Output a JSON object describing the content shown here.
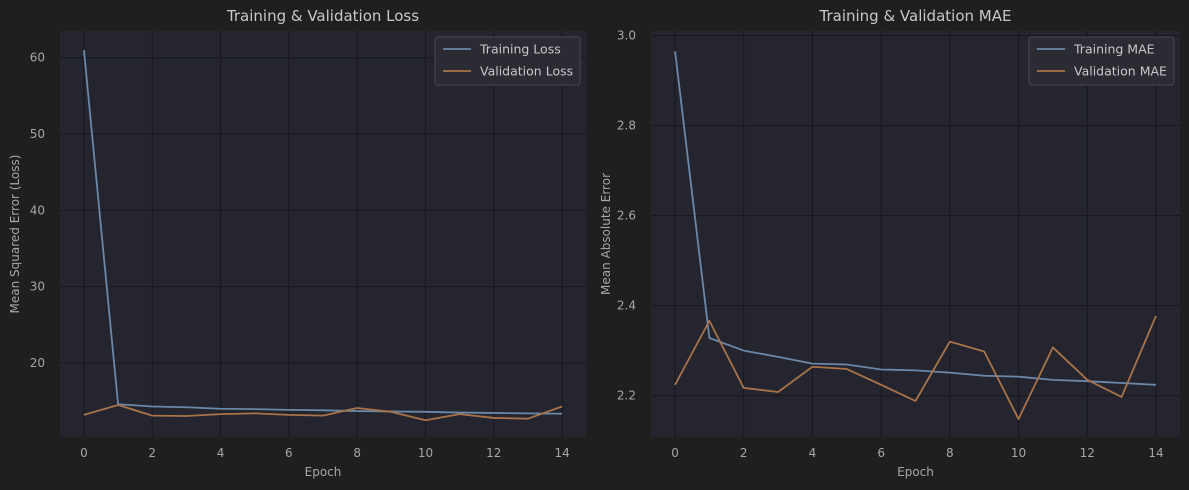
{
  "colors": {
    "figure_bg": "#1f1f1f",
    "axes_bg": "#24252e",
    "grid": "#17181d",
    "training": "#6b88a8",
    "validation": "#a8734a",
    "text": "#c8c8c8",
    "tick_text": "#a6a6a6"
  },
  "chart_data": [
    {
      "type": "line",
      "title": "Training & Validation Loss",
      "xlabel": "Epoch",
      "ylabel": "Mean Squared Error (Loss)",
      "xlim": [
        -0.7,
        14.7
      ],
      "ylim": [
        10.3,
        63.5
      ],
      "xticks": [
        0,
        2,
        4,
        6,
        8,
        10,
        12,
        14
      ],
      "yticks": [
        20,
        30,
        40,
        50,
        60
      ],
      "grid": true,
      "legend_position": "top-right",
      "x": [
        0,
        1,
        2,
        3,
        4,
        5,
        6,
        7,
        8,
        9,
        10,
        11,
        12,
        13,
        14
      ],
      "series": [
        {
          "name": "Training Loss",
          "color_key": "training",
          "values": [
            61.0,
            14.6,
            14.3,
            14.2,
            14.0,
            13.95,
            13.85,
            13.8,
            13.7,
            13.65,
            13.6,
            13.5,
            13.45,
            13.4,
            13.35
          ]
        },
        {
          "name": "Validation Loss",
          "color_key": "validation",
          "values": [
            13.2,
            14.5,
            13.1,
            13.05,
            13.3,
            13.4,
            13.2,
            13.1,
            14.1,
            13.6,
            12.5,
            13.3,
            12.8,
            12.7,
            14.3
          ]
        }
      ]
    },
    {
      "type": "line",
      "title": "Training & Validation MAE",
      "xlabel": "Epoch",
      "ylabel": "Mean Absolute Error",
      "xlim": [
        -0.7,
        14.7
      ],
      "ylim": [
        2.108,
        3.01
      ],
      "xticks": [
        0,
        2,
        4,
        6,
        8,
        10,
        12,
        14
      ],
      "yticks": [
        2.2,
        2.4,
        2.6,
        2.8,
        3.0
      ],
      "ytick_labels": [
        "2.2",
        "2.4",
        "2.6",
        "2.8",
        "3.0"
      ],
      "grid": true,
      "legend_position": "top-right",
      "x": [
        0,
        1,
        2,
        3,
        4,
        5,
        6,
        7,
        8,
        9,
        10,
        11,
        12,
        13,
        14
      ],
      "series": [
        {
          "name": "Training MAE",
          "color_key": "training",
          "values": [
            2.965,
            2.328,
            2.3,
            2.286,
            2.271,
            2.269,
            2.258,
            2.256,
            2.251,
            2.244,
            2.242,
            2.235,
            2.232,
            2.228,
            2.224
          ]
        },
        {
          "name": "Validation MAE",
          "color_key": "validation",
          "values": [
            2.224,
            2.366,
            2.217,
            2.208,
            2.264,
            2.259,
            2.224,
            2.188,
            2.32,
            2.298,
            2.148,
            2.307,
            2.235,
            2.197,
            2.377
          ]
        }
      ]
    }
  ]
}
